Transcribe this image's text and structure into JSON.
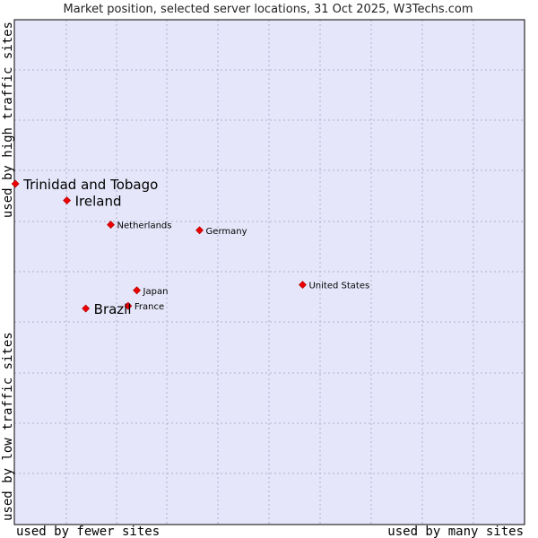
{
  "chart_data": {
    "type": "scatter",
    "title": "Market position, selected server locations, 31 Oct 2025, W3Techs.com",
    "x_label_left": "used by fewer sites",
    "x_label_right": "used by many sites",
    "y_label_bottom": "used by low traffic sites",
    "y_label_top": "used by high traffic sites",
    "xlim": [
      0,
      100
    ],
    "ylim": [
      0,
      100
    ],
    "grid": true,
    "colors": {
      "plot_bg": "#e6e6fa",
      "grid": "#b0b0c8",
      "border": "#000000",
      "point": "#ee0000"
    },
    "points": [
      {
        "name": "Trinidad and Tobago",
        "x": 0.2,
        "y": 67.5,
        "emphasis": true
      },
      {
        "name": "Ireland",
        "x": 10.3,
        "y": 64.2,
        "emphasis": true
      },
      {
        "name": "Netherlands",
        "x": 18.9,
        "y": 59.4,
        "emphasis": false
      },
      {
        "name": "Germany",
        "x": 36.3,
        "y": 58.3,
        "emphasis": false
      },
      {
        "name": "United States",
        "x": 56.5,
        "y": 47.5,
        "emphasis": false
      },
      {
        "name": "Japan",
        "x": 24.0,
        "y": 46.4,
        "emphasis": false
      },
      {
        "name": "France",
        "x": 22.3,
        "y": 43.3,
        "emphasis": false
      },
      {
        "name": "Brazil",
        "x": 14.0,
        "y": 42.8,
        "emphasis": true
      }
    ]
  }
}
